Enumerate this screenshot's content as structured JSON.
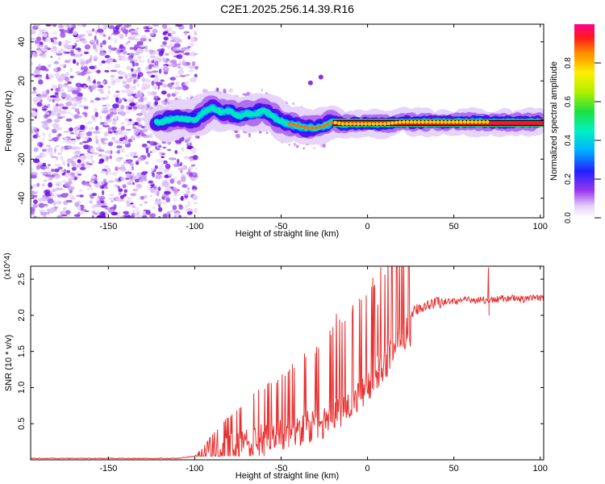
{
  "figure": {
    "title": "C2E1.2025.256.14.39.R16"
  },
  "chart_data": [
    {
      "type": "heatmap",
      "title": "C2E1.2025.256.14.39.R16",
      "xlabel": "Height of straight line (km)",
      "ylabel": "Frequency (Hz)",
      "xlim": [
        -195,
        102
      ],
      "ylim": [
        -50,
        49
      ],
      "xticks": [
        -150,
        -100,
        -50,
        0,
        50,
        100
      ],
      "yticks": [
        -40,
        -20,
        0,
        20,
        40
      ],
      "colorbar": {
        "label": "Normalized spectral amplitude",
        "range": [
          0,
          1
        ],
        "ticks": [
          "0.0",
          "0.2",
          "0.4",
          "0.6",
          "0.8"
        ],
        "tick_values": [
          0,
          0.2,
          0.4,
          0.6,
          0.8
        ]
      },
      "ridge": {
        "description": "signal ridge near 0 Hz",
        "x": [
          -130,
          -120,
          -110,
          -100,
          -95,
          -90,
          -85,
          -80,
          -75,
          -70,
          -65,
          -60,
          -55,
          -50,
          -45,
          -40,
          -35,
          -30,
          -25,
          -20,
          -15,
          -10,
          0,
          10,
          20,
          30,
          40,
          50,
          60,
          70,
          100
        ],
        "y": [
          -1,
          -1,
          1,
          0,
          4,
          6,
          4,
          5,
          2,
          3,
          3,
          5,
          2,
          -1,
          -2,
          -3,
          -4,
          -4,
          -3,
          -1,
          -2,
          -2,
          -2,
          -2,
          -1,
          -1,
          -1,
          -1,
          -1,
          -1,
          -1
        ],
        "strong_from_x": -20
      },
      "noise_region": {
        "x_from": -195,
        "x_to": -103
      },
      "outliers": [
        {
          "x": -33,
          "y": 19
        },
        {
          "x": -27,
          "y": 22
        }
      ]
    },
    {
      "type": "line",
      "xlabel": "Height of straight line (km)",
      "ylabel": "SNR (10 * v/v)",
      "y_multiplier": "(x10^4)",
      "xlim": [
        -195,
        102
      ],
      "ylim": [
        0,
        2.68
      ],
      "xticks": [
        -150,
        -100,
        -50,
        0,
        50,
        100
      ],
      "yticks": [
        "0.5",
        "1.0",
        "1.5",
        "2.0",
        "2.5"
      ],
      "ytick_values": [
        0.5,
        1.0,
        1.5,
        2.0,
        2.5
      ],
      "series": [
        {
          "name": "SNR",
          "color": "#e83030",
          "x": [
            -195,
            -150,
            -110,
            -100,
            -95,
            -90,
            -85,
            -80,
            -75,
            -70,
            -65,
            -60,
            -55,
            -50,
            -45,
            -40,
            -35,
            -30,
            -25,
            -20,
            -15,
            -10,
            -5,
            0,
            5,
            10,
            15,
            20,
            25,
            30,
            35,
            40,
            50,
            60,
            65,
            70,
            75,
            80,
            90,
            100
          ],
          "values": [
            0.02,
            0.02,
            0.02,
            0.05,
            0.12,
            0.22,
            0.3,
            0.35,
            0.4,
            0.45,
            0.48,
            0.5,
            0.52,
            0.56,
            0.6,
            0.62,
            0.68,
            0.7,
            0.74,
            0.82,
            0.9,
            1.0,
            1.1,
            1.22,
            1.4,
            1.55,
            1.72,
            1.9,
            2.02,
            2.1,
            2.15,
            2.18,
            2.2,
            2.21,
            2.22,
            2.2,
            2.22,
            2.24,
            2.22,
            2.24
          ]
        }
      ],
      "peaks": [
        {
          "x": 70,
          "y": 2.66
        },
        {
          "x": 6,
          "y": 2.15
        },
        {
          "x": -18,
          "y": 2.02
        }
      ]
    }
  ]
}
